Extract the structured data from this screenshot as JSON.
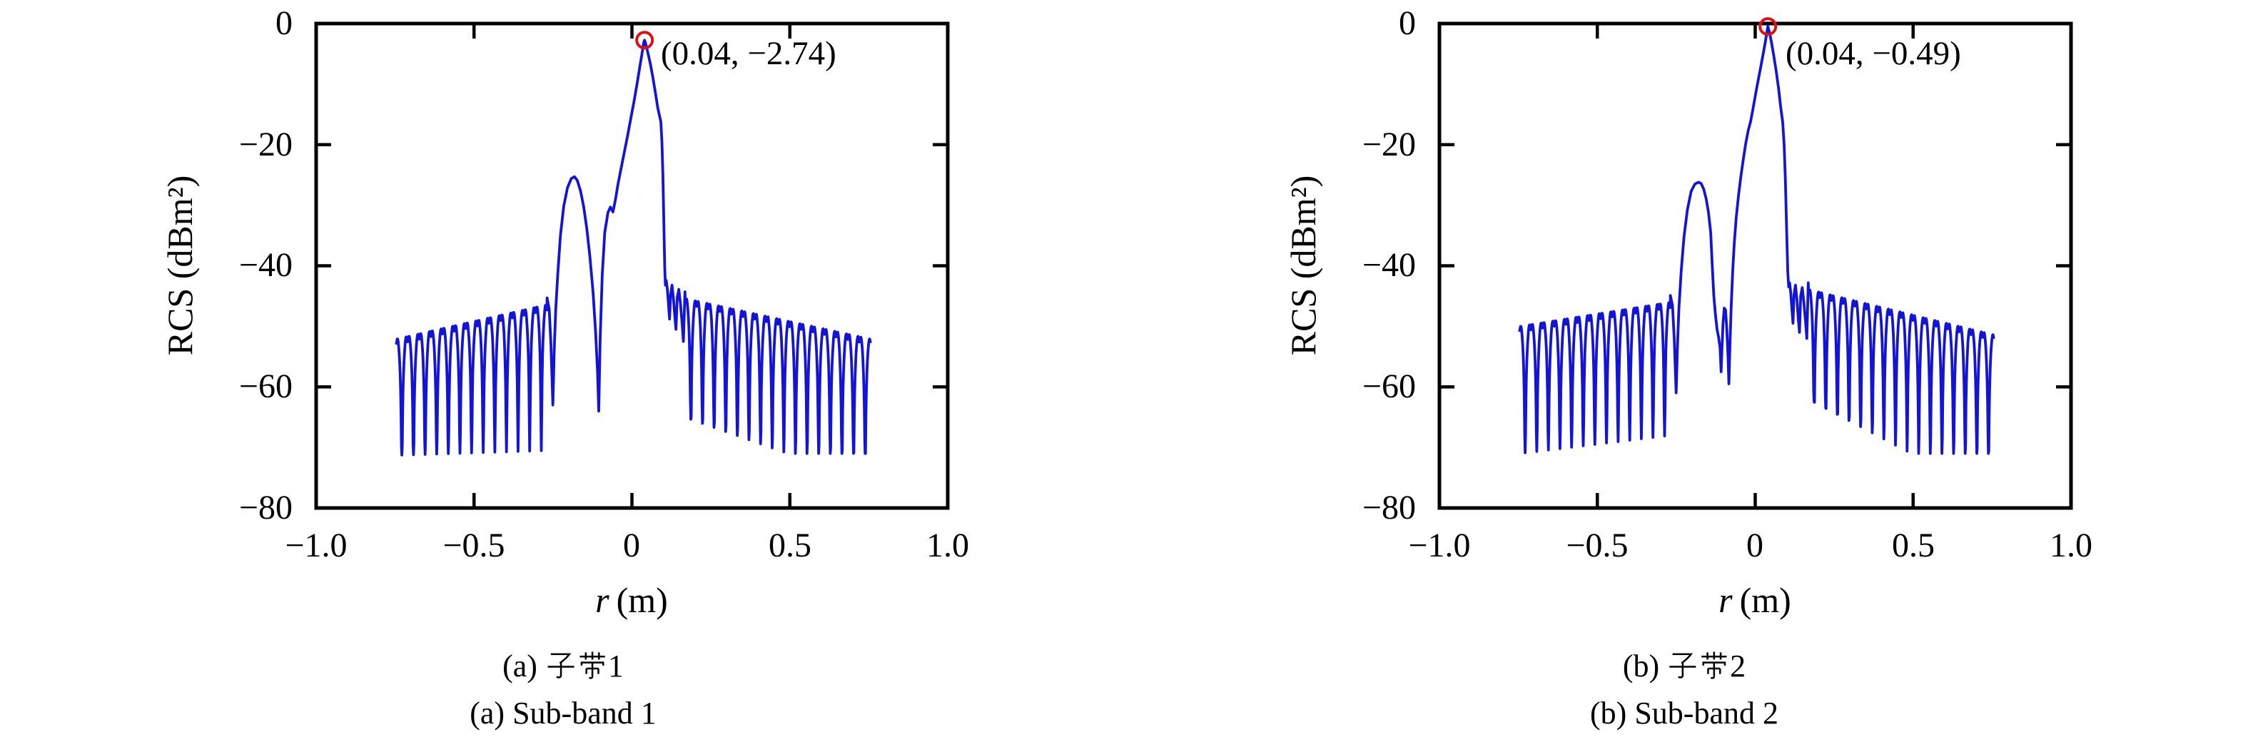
{
  "figure": {
    "background": "#ffffff",
    "colors": {
      "curve": "#1414d6",
      "marker": "#dd1111",
      "axis": "#000000"
    },
    "panels": [
      {
        "id": "a",
        "ylabel": "RCS (dBm²)",
        "xlabel_var": "r",
        "xlabel_unit": "(m)",
        "y_ticks": [
          "0",
          "−20",
          "−40",
          "−60",
          "−80"
        ],
        "x_ticks": [
          "−1.0",
          "−0.5",
          "0",
          "0.5",
          "1.0"
        ],
        "annotation": "(0.04, −2.74)",
        "caption_zh": "(a) 子带1",
        "caption_zh_prefix": "(a)",
        "caption_zh_hanzi": "子带",
        "caption_zh_num": "1",
        "caption_en": "(a) Sub-band 1"
      },
      {
        "id": "b",
        "ylabel": "RCS (dBm²)",
        "xlabel_var": "r",
        "xlabel_unit": "(m)",
        "y_ticks": [
          "0",
          "−20",
          "−40",
          "−60",
          "−80"
        ],
        "x_ticks": [
          "−1.0",
          "−0.5",
          "0",
          "0.5",
          "1.0"
        ],
        "annotation": "(0.04, −0.49)",
        "caption_zh": "(b) 子带2",
        "caption_zh_prefix": "(b)",
        "caption_zh_hanzi": "子带",
        "caption_zh_num": "2",
        "caption_en": "(b) Sub-band 2"
      }
    ]
  },
  "chart_data": [
    {
      "type": "line",
      "title": "(a) 子带1 / Sub-band 1",
      "xlabel": "r (m)",
      "ylabel": "RCS (dBm²)",
      "xlim": [
        -1,
        1
      ],
      "ylim": [
        -80,
        0
      ],
      "x_tick_values": [
        -1,
        -0.5,
        0,
        0.5,
        1
      ],
      "y_tick_values": [
        0,
        -20,
        -40,
        -60,
        -80
      ],
      "tick_len": 21,
      "grid": false,
      "peak": {
        "x": 0.04,
        "y": -2.74
      },
      "features": {
        "main_peak": {
          "r": 0.04,
          "rcs_db": -2.74
        },
        "secondary_lobe": {
          "r": -0.182,
          "rcs_db": -25.3
        },
        "sidelobe_top_range_db": [
          -51,
          -44.3
        ],
        "sidelobe_null_db": -71,
        "data_range_r": [
          -0.747,
          0.7555
        ]
      },
      "series_model": {
        "comb_period": 0.0368,
        "top_notch": 2.0,
        "comb_left": {
          "first_top_r": -0.747,
          "last_top_r": -0.2686,
          "top_db": [
            -51.0,
            -45.3
          ],
          "floor_db": [
            -71.3,
            -70.5
          ]
        },
        "anchors": [
          [
            -0.2686,
            -45.3
          ],
          [
            -0.262,
            -47.2
          ],
          [
            -0.2565,
            -53
          ],
          [
            -0.2505,
            -63
          ],
          [
            -0.246,
            -54
          ],
          [
            -0.2415,
            -47.5
          ],
          [
            -0.235,
            -41.5
          ],
          [
            -0.2265,
            -35
          ],
          [
            -0.216,
            -30.2
          ],
          [
            -0.204,
            -27.1
          ],
          [
            -0.192,
            -25.6
          ],
          [
            -0.182,
            -25.3
          ],
          [
            -0.173,
            -25.9
          ],
          [
            -0.163,
            -27.6
          ],
          [
            -0.153,
            -30.2
          ],
          [
            -0.143,
            -33.8
          ],
          [
            -0.133,
            -38.5
          ],
          [
            -0.123,
            -44.5
          ],
          [
            -0.115,
            -51
          ],
          [
            -0.109,
            -57.5
          ],
          [
            -0.105,
            -64
          ],
          [
            -0.1005,
            -52
          ],
          [
            -0.094,
            -41.5
          ],
          [
            -0.086,
            -34.5
          ],
          [
            -0.076,
            -31.2
          ],
          [
            -0.068,
            -30.3
          ],
          [
            -0.06,
            -31.1
          ],
          [
            -0.052,
            -29
          ],
          [
            -0.044,
            -26.5
          ],
          [
            -0.034,
            -23.8
          ],
          [
            -0.024,
            -21.2
          ],
          [
            -0.014,
            -18.6
          ],
          [
            -0.004,
            -15.8
          ],
          [
            0.006,
            -13
          ],
          [
            0.016,
            -10
          ],
          [
            0.026,
            -6.8
          ],
          [
            0.033,
            -4.6
          ],
          [
            0.0375,
            -3.1
          ],
          [
            0.04,
            -2.74
          ],
          [
            0.0435,
            -3.3
          ],
          [
            0.05,
            -4.7
          ],
          [
            0.058,
            -6.6
          ],
          [
            0.066,
            -8.8
          ],
          [
            0.074,
            -11.3
          ],
          [
            0.082,
            -14
          ],
          [
            0.0915,
            -16.2
          ],
          [
            0.095,
            -19.5
          ],
          [
            0.098,
            -25
          ],
          [
            0.101,
            -33
          ],
          [
            0.104,
            -40.5
          ],
          [
            0.106,
            -43.2
          ],
          [
            0.1085,
            -42.4
          ],
          [
            0.112,
            -43.8
          ],
          [
            0.1155,
            -46.2
          ],
          [
            0.119,
            -48.8
          ],
          [
            0.1225,
            -44.8
          ],
          [
            0.127,
            -43.2
          ],
          [
            0.1315,
            -45.5
          ],
          [
            0.1355,
            -48.2
          ],
          [
            0.1395,
            -50.5
          ],
          [
            0.1435,
            -45.2
          ],
          [
            0.1485,
            -43.9
          ],
          [
            0.1535,
            -46.2
          ],
          [
            0.1585,
            -49.2
          ],
          [
            0.163,
            -52.5
          ],
          [
            0.168,
            -44.3
          ]
        ],
        "comb_right": {
          "first_null_r": 0.1866,
          "end_r": 0.7555,
          "top_db": [
            -44.3,
            -51.0
          ],
          "floor_db": [
            -65,
            -71
          ]
        }
      }
    },
    {
      "type": "line",
      "title": "(b) 子带2 / Sub-band 2",
      "xlabel": "r (m)",
      "ylabel": "RCS (dBm²)",
      "xlim": [
        -1,
        1
      ],
      "ylim": [
        -80,
        0
      ],
      "x_tick_values": [
        -1,
        -0.5,
        0,
        0.5,
        1
      ],
      "y_tick_values": [
        0,
        -20,
        -40,
        -60,
        -80
      ],
      "tick_len": 21,
      "grid": false,
      "peak": {
        "x": 0.04,
        "y": -0.49
      },
      "features": {
        "main_peak": {
          "r": 0.04,
          "rcs_db": -0.49
        },
        "secondary_lobe": {
          "r": -0.175,
          "rcs_db": -26.2
        },
        "sidelobe_top_range_db": [
          -48.9,
          -42.8
        ],
        "sidelobe_null_db": -71,
        "data_range_r": [
          -0.747,
          0.7555
        ]
      },
      "series_model": {
        "comb_period": 0.0368,
        "top_notch": 2.0,
        "comb_left": {
          "first_top_r": -0.747,
          "last_top_r": -0.2686,
          "top_db": [
            -48.9,
            -44.9
          ],
          "floor_db": [
            -71,
            -68
          ]
        },
        "anchors": [
          [
            -0.2686,
            -44.9
          ],
          [
            -0.262,
            -46.6
          ],
          [
            -0.2565,
            -52
          ],
          [
            -0.2505,
            -61
          ],
          [
            -0.246,
            -53
          ],
          [
            -0.2415,
            -47
          ],
          [
            -0.2345,
            -41
          ],
          [
            -0.2255,
            -35.2
          ],
          [
            -0.215,
            -30.8
          ],
          [
            -0.203,
            -27.7
          ],
          [
            -0.191,
            -26.5
          ],
          [
            -0.18,
            -26.2
          ],
          [
            -0.1715,
            -26.4
          ],
          [
            -0.1635,
            -27.3
          ],
          [
            -0.1555,
            -28.9
          ],
          [
            -0.148,
            -31.2
          ],
          [
            -0.141,
            -34.5
          ],
          [
            -0.136,
            -40
          ],
          [
            -0.131,
            -45
          ],
          [
            -0.126,
            -48
          ],
          [
            -0.121,
            -50.5
          ],
          [
            -0.116,
            -51.8
          ],
          [
            -0.1115,
            -53.5
          ],
          [
            -0.108,
            -57.5
          ],
          [
            -0.1055,
            -54
          ],
          [
            -0.102,
            -49.5
          ],
          [
            -0.098,
            -47
          ],
          [
            -0.094,
            -47.3
          ],
          [
            -0.09,
            -50.5
          ],
          [
            -0.086,
            -55
          ],
          [
            -0.0835,
            -59.5
          ],
          [
            -0.08,
            -53
          ],
          [
            -0.076,
            -46.5
          ],
          [
            -0.071,
            -40.5
          ],
          [
            -0.066,
            -36
          ],
          [
            -0.06,
            -32
          ],
          [
            -0.053,
            -28.5
          ],
          [
            -0.046,
            -25.5
          ],
          [
            -0.038,
            -22.5
          ],
          [
            -0.03,
            -19.8
          ],
          [
            -0.022,
            -17.6
          ],
          [
            -0.0147,
            -16.2
          ],
          [
            -0.006,
            -13.8
          ],
          [
            0.002,
            -11.4
          ],
          [
            0.01,
            -9.2
          ],
          [
            0.018,
            -7
          ],
          [
            0.026,
            -4.8
          ],
          [
            0.032,
            -3
          ],
          [
            0.037,
            -1.4
          ],
          [
            0.04,
            -0.49
          ],
          [
            0.0445,
            -1.3
          ],
          [
            0.051,
            -3
          ],
          [
            0.058,
            -5.1
          ],
          [
            0.066,
            -7.7
          ],
          [
            0.074,
            -10.7
          ],
          [
            0.081,
            -13.9
          ],
          [
            0.087,
            -16.3
          ],
          [
            0.0915,
            -20
          ],
          [
            0.0955,
            -26
          ],
          [
            0.0995,
            -34
          ],
          [
            0.103,
            -41
          ],
          [
            0.106,
            -43.5
          ],
          [
            0.109,
            -42.8
          ],
          [
            0.1125,
            -44.5
          ],
          [
            0.116,
            -47
          ],
          [
            0.1195,
            -49.5
          ],
          [
            0.123,
            -44.8
          ],
          [
            0.1275,
            -43.2
          ],
          [
            0.132,
            -45.5
          ],
          [
            0.136,
            -48.5
          ],
          [
            0.14,
            -51
          ],
          [
            0.144,
            -45
          ],
          [
            0.149,
            -43.6
          ],
          [
            0.154,
            -46
          ],
          [
            0.159,
            -49
          ],
          [
            0.1635,
            -52
          ],
          [
            0.168,
            -42.8
          ]
        ],
        "comb_right": {
          "first_null_r": 0.1866,
          "end_r": 0.7555,
          "top_db": [
            -42.8,
            -50.3
          ],
          "floor_db": [
            -62,
            -71
          ]
        }
      }
    }
  ]
}
